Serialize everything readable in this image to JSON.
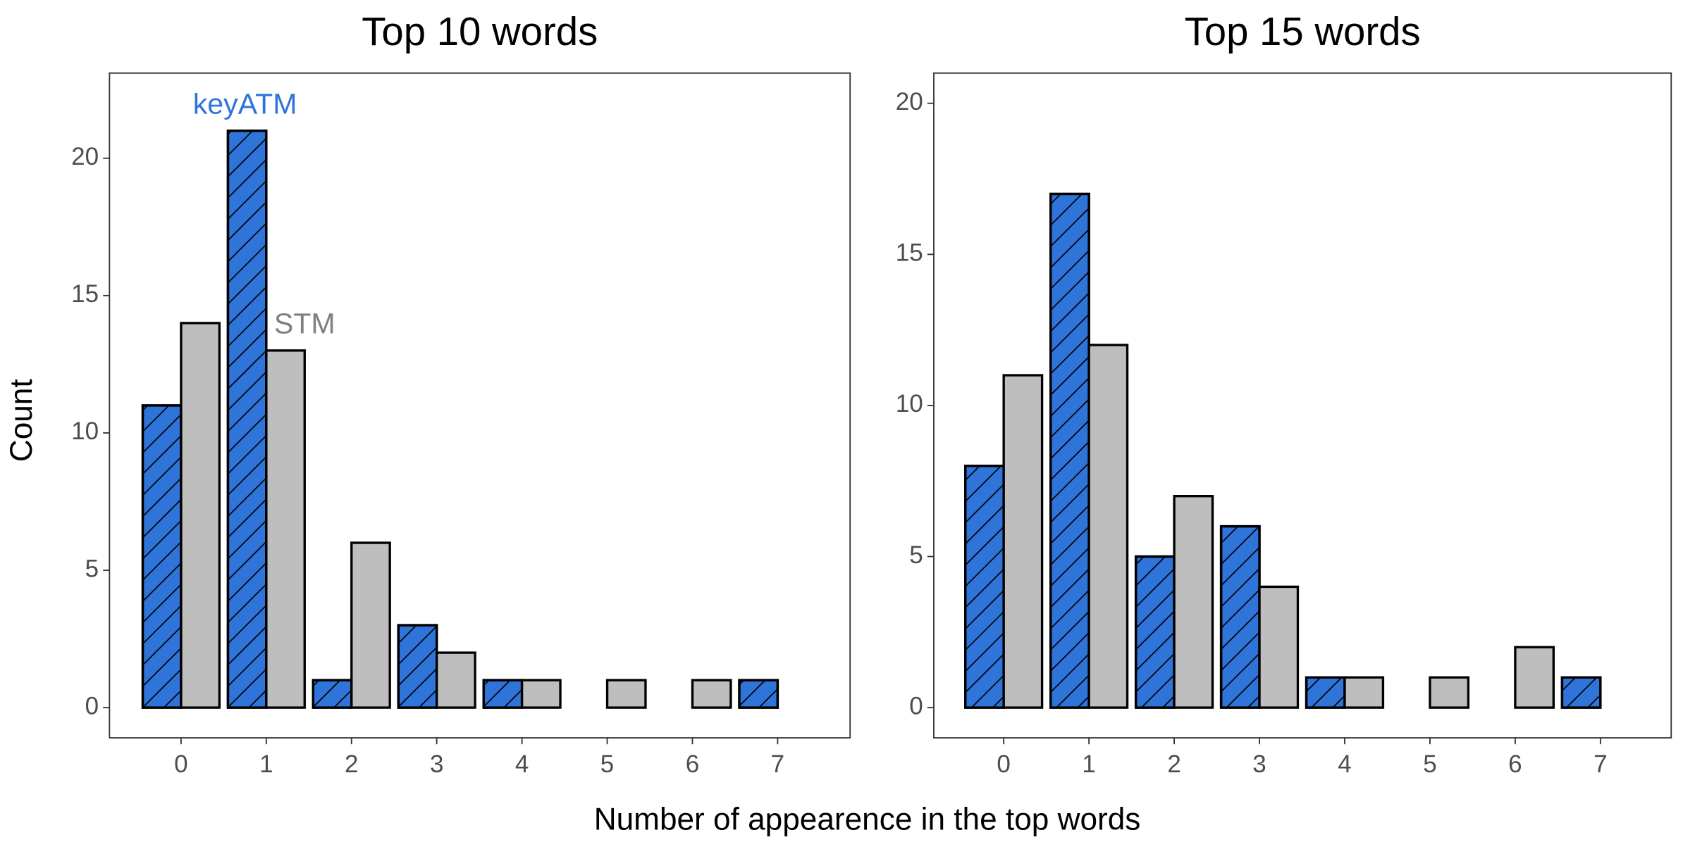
{
  "chart_data": [
    {
      "type": "bar",
      "title": "Top 10 words",
      "x": [
        0,
        1,
        2,
        3,
        4,
        5,
        6,
        7
      ],
      "series": [
        {
          "name": "keyATM",
          "color": "#2f74d8",
          "values": [
            11,
            21,
            1,
            3,
            1,
            0,
            0,
            1
          ]
        },
        {
          "name": "STM",
          "color": "#bebebe",
          "values": [
            14,
            13,
            6,
            2,
            1,
            1,
            1,
            0
          ]
        }
      ],
      "xlim": [
        -0.84,
        7.85
      ],
      "xticks": [
        0,
        1,
        2,
        3,
        4,
        5,
        6,
        7
      ],
      "ylim": [
        -1.1,
        23.1
      ],
      "yticks": [
        0,
        5,
        10,
        15,
        20
      ]
    },
    {
      "type": "bar",
      "title": "Top 15 words",
      "x": [
        0,
        1,
        2,
        3,
        4,
        5,
        6,
        7
      ],
      "series": [
        {
          "name": "keyATM",
          "color": "#2f74d8",
          "values": [
            8,
            17,
            5,
            6,
            1,
            0,
            0,
            1
          ]
        },
        {
          "name": "STM",
          "color": "#bebebe",
          "values": [
            11,
            12,
            7,
            4,
            1,
            1,
            2,
            0
          ]
        }
      ],
      "xlim": [
        -0.82,
        7.83
      ],
      "xticks": [
        0,
        1,
        2,
        3,
        4,
        5,
        6,
        7
      ],
      "ylim": [
        -1,
        21
      ],
      "yticks": [
        0,
        5,
        10,
        15,
        20
      ]
    }
  ],
  "xlabel": "Number of appearence in the top words",
  "ylabel": "Count"
}
